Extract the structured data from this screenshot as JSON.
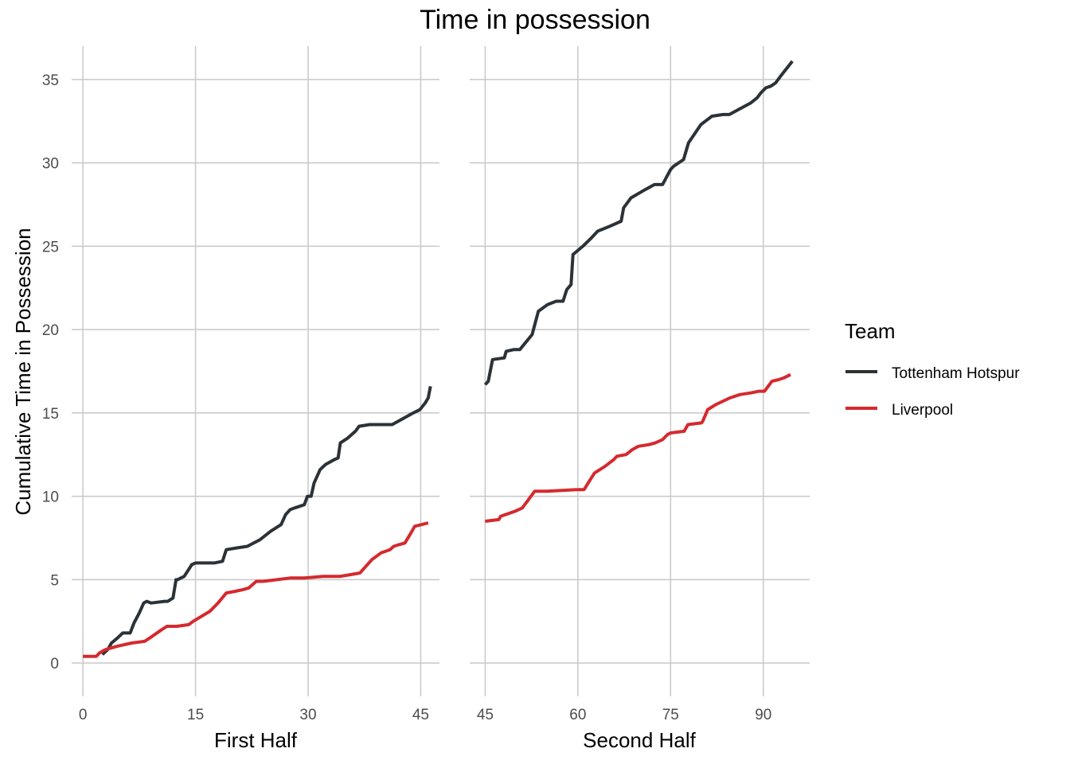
{
  "chart_data": {
    "type": "line",
    "title": "Time in possession",
    "ylabel": "Cumulative Time in Possession",
    "ylim": [
      -2,
      37
    ],
    "yticks": [
      0,
      5,
      10,
      15,
      20,
      25,
      30,
      35
    ],
    "grid": true,
    "legend": {
      "title": "Team",
      "placement": "right",
      "entries": [
        "Tottenham Hotspur",
        "Liverpool"
      ]
    },
    "colors": {
      "Tottenham Hotspur": "#2b3238",
      "Liverpool": "#d42a2e"
    },
    "panels": [
      {
        "xlabel": "First Half",
        "xlim": [
          -1.5,
          47.5
        ],
        "xticks": [
          0,
          15,
          30,
          45
        ],
        "series": [
          {
            "name": "Tottenham Hotspur",
            "x": [
              2.6,
              2.8,
              3.3,
              3.8,
              4.6,
              5.3,
              6.3,
              6.8,
              7.5,
              8.1,
              8.5,
              9.1,
              10.9,
              11.3,
              12.0,
              12.4,
              12.6,
              13.5,
              14.5,
              15.0,
              16.0,
              17.5,
              18.6,
              19.1,
              20.4,
              21.9,
              23.6,
              25.0,
              26.4,
              27.0,
              27.6,
              28.2,
              29.5,
              29.9,
              30.4,
              30.8,
              31.6,
              32.3,
              33.5,
              34.0,
              34.3,
              35.3,
              36.3,
              36.8,
              38.2,
              41.2,
              44.0,
              44.9,
              45.6,
              46.0,
              46.3
            ],
            "values": [
              0.5,
              0.6,
              0.8,
              1.2,
              1.5,
              1.8,
              1.8,
              2.4,
              3.0,
              3.6,
              3.7,
              3.6,
              3.7,
              3.7,
              3.9,
              5.0,
              5.0,
              5.2,
              5.9,
              6.0,
              6.0,
              6.0,
              6.1,
              6.8,
              6.9,
              7.0,
              7.4,
              7.9,
              8.3,
              8.9,
              9.2,
              9.3,
              9.5,
              10.0,
              10.0,
              10.8,
              11.6,
              11.9,
              12.2,
              12.3,
              13.2,
              13.5,
              13.9,
              14.2,
              14.3,
              14.3,
              15.0,
              15.2,
              15.6,
              15.9,
              16.6
            ]
          },
          {
            "name": "Liverpool",
            "x": [
              0.0,
              1.8,
              2.2,
              3.0,
              4.5,
              6.5,
              8.2,
              8.9,
              10.5,
              11.2,
              12.5,
              14.1,
              14.7,
              15.8,
              16.9,
              18.0,
              19.1,
              20.3,
              21.3,
              22.1,
              23.1,
              24.0,
              27.6,
              29.5,
              32.0,
              34.3,
              35.6,
              36.9,
              37.5,
              38.5,
              39.7,
              40.9,
              41.4,
              42.1,
              42.9,
              43.7,
              44.2,
              46.0
            ],
            "values": [
              0.4,
              0.4,
              0.6,
              0.8,
              1.0,
              1.2,
              1.3,
              1.5,
              2.0,
              2.2,
              2.2,
              2.3,
              2.5,
              2.8,
              3.1,
              3.6,
              4.2,
              4.3,
              4.4,
              4.5,
              4.9,
              4.9,
              5.1,
              5.1,
              5.2,
              5.2,
              5.3,
              5.4,
              5.7,
              6.2,
              6.6,
              6.8,
              7.0,
              7.1,
              7.2,
              7.8,
              8.2,
              8.4
            ]
          }
        ]
      },
      {
        "xlabel": "Second Half",
        "xlim": [
          42.5,
          97.5
        ],
        "xticks": [
          45,
          60,
          75,
          90
        ],
        "series": [
          {
            "name": "Tottenham Hotspur",
            "x": [
              45.0,
              45.5,
              46.2,
              48.1,
              48.4,
              49.6,
              50.6,
              52.6,
              53.6,
              55.1,
              56.5,
              57.6,
              58.2,
              58.9,
              59.2,
              60.8,
              62.2,
              63.2,
              65.2,
              67.0,
              67.4,
              68.6,
              70.9,
              72.4,
              73.7,
              75.0,
              75.5,
              77.1,
              77.9,
              79.9,
              81.7,
              83.5,
              84.5,
              86.5,
              88.0,
              89.0,
              89.6,
              90.4,
              91.2,
              92.0,
              93.0,
              94.7
            ],
            "values": [
              16.7,
              16.9,
              18.2,
              18.3,
              18.7,
              18.8,
              18.8,
              19.7,
              21.1,
              21.5,
              21.7,
              21.7,
              22.4,
              22.7,
              24.5,
              25.0,
              25.5,
              25.9,
              26.2,
              26.5,
              27.3,
              27.9,
              28.4,
              28.7,
              28.7,
              29.6,
              29.8,
              30.2,
              31.2,
              32.3,
              32.8,
              32.9,
              32.9,
              33.3,
              33.6,
              33.9,
              34.2,
              34.5,
              34.6,
              34.8,
              35.3,
              36.1
            ]
          },
          {
            "name": "Liverpool",
            "x": [
              45.0,
              47.2,
              47.5,
              49.8,
              51.0,
              52.0,
              53.0,
              55.0,
              59.8,
              61.0,
              61.5,
              62.0,
              62.7,
              64.4,
              65.8,
              66.3,
              67.8,
              68.8,
              69.8,
              71.5,
              72.5,
              73.7,
              74.5,
              75.0,
              77.2,
              77.8,
              80.0,
              80.2,
              81.0,
              82.3,
              84.6,
              86.2,
              88.0,
              89.3,
              90.2,
              91.4,
              92.5,
              93.3,
              94.4
            ],
            "values": [
              8.5,
              8.6,
              8.8,
              9.1,
              9.3,
              9.8,
              10.3,
              10.3,
              10.4,
              10.4,
              10.7,
              11.0,
              11.4,
              11.8,
              12.2,
              12.4,
              12.5,
              12.8,
              13.0,
              13.1,
              13.2,
              13.4,
              13.7,
              13.8,
              13.9,
              14.3,
              14.4,
              14.5,
              15.2,
              15.5,
              15.9,
              16.1,
              16.2,
              16.3,
              16.3,
              16.9,
              17.0,
              17.1,
              17.3
            ]
          }
        ]
      }
    ]
  }
}
